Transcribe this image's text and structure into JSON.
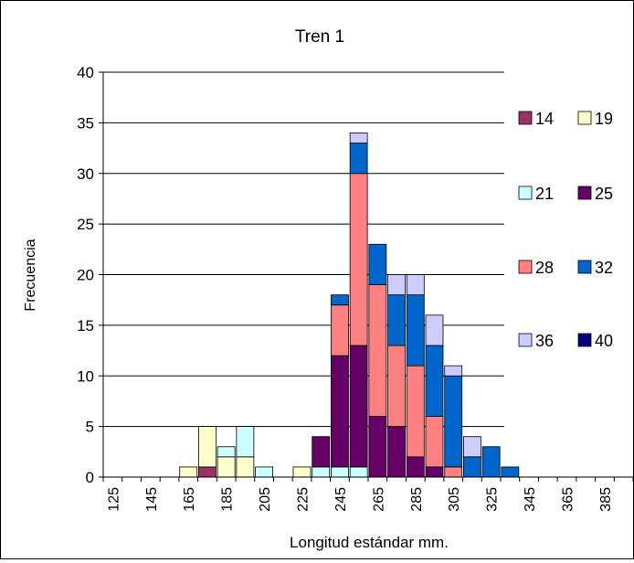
{
  "chart_data": {
    "type": "bar",
    "stacked": true,
    "title": "Tren 1",
    "xlabel": "Longitud estándar mm.",
    "ylabel": "Frecuencia",
    "ylim": [
      0,
      40
    ],
    "yticks": [
      0,
      5,
      10,
      15,
      20,
      25,
      30,
      35,
      40
    ],
    "grid": true,
    "legend_position": "right",
    "categories": [
      125,
      135,
      145,
      155,
      165,
      175,
      185,
      195,
      205,
      215,
      225,
      235,
      245,
      255,
      265,
      275,
      285,
      295,
      305,
      315,
      325,
      335,
      345,
      355,
      365,
      375,
      385,
      395
    ],
    "xtick_labels": [
      "125",
      "145",
      "165",
      "185",
      "205",
      "225",
      "245",
      "265",
      "285",
      "305",
      "325",
      "345",
      "365",
      "385"
    ],
    "series": [
      {
        "name": "14",
        "color": "#993366",
        "values": [
          0,
          0,
          0,
          0,
          0,
          1,
          0,
          0,
          0,
          0,
          0,
          0,
          0,
          0,
          0,
          0,
          0,
          0,
          0,
          0,
          0,
          0,
          0,
          0,
          0,
          0,
          0,
          0
        ]
      },
      {
        "name": "19",
        "color": "#FFFFCC",
        "values": [
          0,
          0,
          0,
          0,
          1,
          4,
          2,
          2,
          0,
          0,
          1,
          0,
          0,
          0,
          0,
          0,
          0,
          0,
          0,
          0,
          0,
          0,
          0,
          0,
          0,
          0,
          0,
          0
        ]
      },
      {
        "name": "21",
        "color": "#CCFFFF",
        "values": [
          0,
          0,
          0,
          0,
          0,
          0,
          1,
          3,
          1,
          0,
          0,
          1,
          1,
          1,
          0,
          0,
          0,
          0,
          0,
          0,
          0,
          0,
          0,
          0,
          0,
          0,
          0,
          0
        ]
      },
      {
        "name": "25",
        "color": "#660066",
        "values": [
          0,
          0,
          0,
          0,
          0,
          0,
          0,
          0,
          0,
          0,
          0,
          3,
          11,
          12,
          6,
          5,
          2,
          1,
          0,
          0,
          0,
          0,
          0,
          0,
          0,
          0,
          0,
          0
        ]
      },
      {
        "name": "28",
        "color": "#FF8080",
        "values": [
          0,
          0,
          0,
          0,
          0,
          0,
          0,
          0,
          0,
          0,
          0,
          0,
          5,
          17,
          13,
          8,
          9,
          5,
          1,
          0,
          0,
          0,
          0,
          0,
          0,
          0,
          0,
          0
        ]
      },
      {
        "name": "32",
        "color": "#0066CC",
        "values": [
          0,
          0,
          0,
          0,
          0,
          0,
          0,
          0,
          0,
          0,
          0,
          0,
          1,
          3,
          4,
          5,
          7,
          7,
          9,
          2,
          3,
          1,
          0,
          0,
          0,
          0,
          0,
          0
        ]
      },
      {
        "name": "36",
        "color": "#CCCCFF",
        "values": [
          0,
          0,
          0,
          0,
          0,
          0,
          0,
          0,
          0,
          0,
          0,
          0,
          0,
          1,
          0,
          2,
          2,
          3,
          1,
          2,
          0,
          0,
          0,
          0,
          0,
          0,
          0,
          0
        ]
      },
      {
        "name": "40",
        "color": "#000080",
        "values": [
          0,
          0,
          0,
          0,
          0,
          0,
          0,
          0,
          0,
          0,
          0,
          0,
          0,
          0,
          0,
          0,
          0,
          0,
          0,
          0,
          0,
          0,
          0,
          0,
          0,
          0,
          0,
          0
        ]
      }
    ]
  }
}
